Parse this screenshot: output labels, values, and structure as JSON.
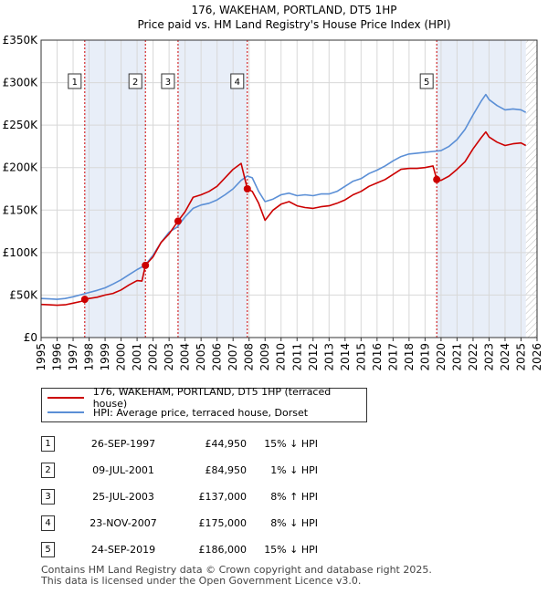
{
  "chart_data": {
    "type": "line",
    "title": "176, WAKEHAM, PORTLAND, DT5 1HP",
    "subtitle": "Price paid vs. HM Land Registry's House Price Index (HPI)",
    "xlim": [
      1995,
      2026
    ],
    "ylim": [
      0,
      350000
    ],
    "x_ticks": [
      "1995",
      "1996",
      "1997",
      "1998",
      "1999",
      "2000",
      "2001",
      "2002",
      "2003",
      "2004",
      "2005",
      "2006",
      "2007",
      "2008",
      "2009",
      "2010",
      "2011",
      "2012",
      "2013",
      "2014",
      "2015",
      "2016",
      "2017",
      "2018",
      "2019",
      "2020",
      "2021",
      "2022",
      "2023",
      "2024",
      "2025",
      "2026"
    ],
    "y_ticks": [
      {
        "value": 0,
        "label": "£0"
      },
      {
        "value": 50000,
        "label": "£50K"
      },
      {
        "value": 100000,
        "label": "£100K"
      },
      {
        "value": 150000,
        "label": "£150K"
      },
      {
        "value": 200000,
        "label": "£200K"
      },
      {
        "value": 250000,
        "label": "£250K"
      },
      {
        "value": 300000,
        "label": "£300K"
      },
      {
        "value": 350000,
        "label": "£350K"
      }
    ],
    "series": [
      {
        "name": "176, WAKEHAM, PORTLAND, DT5 1HP (terraced house)",
        "color": "#cc0000",
        "points": [
          [
            1995.0,
            39000
          ],
          [
            1995.5,
            38500
          ],
          [
            1996.0,
            38000
          ],
          [
            1996.5,
            38500
          ],
          [
            1997.0,
            40500
          ],
          [
            1997.5,
            42500
          ],
          [
            1997.73,
            44950
          ],
          [
            1998.0,
            46000
          ],
          [
            1998.5,
            47500
          ],
          [
            1999.0,
            50000
          ],
          [
            1999.5,
            52000
          ],
          [
            2000.0,
            56000
          ],
          [
            2000.5,
            62000
          ],
          [
            2001.0,
            67000
          ],
          [
            2001.3,
            66500
          ],
          [
            2001.52,
            84950
          ],
          [
            2002.0,
            95000
          ],
          [
            2002.5,
            112000
          ],
          [
            2003.0,
            122000
          ],
          [
            2003.56,
            137000
          ],
          [
            2004.0,
            148000
          ],
          [
            2004.5,
            165000
          ],
          [
            2005.0,
            168000
          ],
          [
            2005.5,
            172000
          ],
          [
            2006.0,
            178000
          ],
          [
            2006.5,
            188000
          ],
          [
            2007.0,
            198000
          ],
          [
            2007.5,
            205000
          ],
          [
            2007.89,
            175000
          ],
          [
            2008.2,
            172000
          ],
          [
            2008.6,
            158000
          ],
          [
            2009.0,
            138000
          ],
          [
            2009.5,
            150000
          ],
          [
            2010.0,
            157000
          ],
          [
            2010.5,
            160000
          ],
          [
            2011.0,
            155000
          ],
          [
            2011.5,
            153000
          ],
          [
            2012.0,
            152000
          ],
          [
            2012.5,
            154000
          ],
          [
            2013.0,
            155000
          ],
          [
            2013.5,
            158000
          ],
          [
            2014.0,
            162000
          ],
          [
            2014.5,
            168000
          ],
          [
            2015.0,
            172000
          ],
          [
            2015.5,
            178000
          ],
          [
            2016.0,
            182000
          ],
          [
            2016.5,
            186000
          ],
          [
            2017.0,
            192000
          ],
          [
            2017.5,
            198000
          ],
          [
            2018.0,
            199000
          ],
          [
            2018.5,
            199000
          ],
          [
            2019.0,
            200000
          ],
          [
            2019.5,
            202000
          ],
          [
            2019.73,
            186000
          ],
          [
            2020.0,
            185000
          ],
          [
            2020.5,
            190000
          ],
          [
            2021.0,
            198000
          ],
          [
            2021.5,
            207000
          ],
          [
            2022.0,
            222000
          ],
          [
            2022.5,
            235000
          ],
          [
            2022.8,
            242000
          ],
          [
            2023.0,
            236000
          ],
          [
            2023.5,
            230000
          ],
          [
            2024.0,
            226000
          ],
          [
            2024.5,
            228000
          ],
          [
            2025.0,
            229000
          ],
          [
            2025.3,
            226000
          ]
        ]
      },
      {
        "name": "HPI: Average price, terraced house, Dorset",
        "color": "#5b8fd6",
        "points": [
          [
            1995.0,
            46000
          ],
          [
            1995.5,
            45500
          ],
          [
            1996.0,
            45000
          ],
          [
            1996.5,
            46000
          ],
          [
            1997.0,
            48000
          ],
          [
            1997.5,
            50500
          ],
          [
            1998.0,
            53000
          ],
          [
            1998.5,
            55500
          ],
          [
            1999.0,
            58500
          ],
          [
            1999.5,
            63000
          ],
          [
            2000.0,
            68000
          ],
          [
            2000.5,
            74000
          ],
          [
            2001.0,
            80000
          ],
          [
            2001.5,
            85000
          ],
          [
            2002.0,
            97000
          ],
          [
            2002.5,
            112000
          ],
          [
            2003.0,
            124000
          ],
          [
            2003.5,
            130000
          ],
          [
            2004.0,
            142000
          ],
          [
            2004.5,
            152000
          ],
          [
            2005.0,
            156000
          ],
          [
            2005.5,
            158000
          ],
          [
            2006.0,
            162000
          ],
          [
            2006.5,
            168000
          ],
          [
            2007.0,
            175000
          ],
          [
            2007.5,
            185000
          ],
          [
            2007.89,
            190000
          ],
          [
            2008.2,
            188000
          ],
          [
            2008.6,
            172000
          ],
          [
            2009.0,
            160000
          ],
          [
            2009.5,
            163000
          ],
          [
            2010.0,
            168000
          ],
          [
            2010.5,
            170000
          ],
          [
            2011.0,
            167000
          ],
          [
            2011.5,
            168000
          ],
          [
            2012.0,
            167000
          ],
          [
            2012.5,
            169000
          ],
          [
            2013.0,
            169000
          ],
          [
            2013.5,
            172000
          ],
          [
            2014.0,
            178000
          ],
          [
            2014.5,
            184000
          ],
          [
            2015.0,
            187000
          ],
          [
            2015.5,
            193000
          ],
          [
            2016.0,
            197000
          ],
          [
            2016.5,
            202000
          ],
          [
            2017.0,
            208000
          ],
          [
            2017.5,
            213000
          ],
          [
            2018.0,
            216000
          ],
          [
            2018.5,
            217000
          ],
          [
            2019.0,
            218000
          ],
          [
            2019.5,
            219000
          ],
          [
            2020.0,
            220000
          ],
          [
            2020.5,
            225000
          ],
          [
            2021.0,
            233000
          ],
          [
            2021.5,
            245000
          ],
          [
            2022.0,
            262000
          ],
          [
            2022.5,
            278000
          ],
          [
            2022.8,
            286000
          ],
          [
            2023.0,
            280000
          ],
          [
            2023.5,
            273000
          ],
          [
            2024.0,
            268000
          ],
          [
            2024.5,
            269000
          ],
          [
            2025.0,
            268000
          ],
          [
            2025.3,
            265000
          ]
        ]
      }
    ],
    "sales": [
      {
        "label": "1",
        "year": 1997.73,
        "price": 44950
      },
      {
        "label": "2",
        "year": 2001.52,
        "price": 84950
      },
      {
        "label": "3",
        "year": 2003.56,
        "price": 137000
      },
      {
        "label": "4",
        "year": 2007.89,
        "price": 175000
      },
      {
        "label": "5",
        "year": 2019.73,
        "price": 186000
      }
    ],
    "shaded_ranges": [
      [
        1997.73,
        2001.52
      ],
      [
        2003.56,
        2007.89
      ],
      [
        2019.73,
        2025.3
      ]
    ],
    "hatched_from": 2025.3
  },
  "legend": {
    "property_label": "176, WAKEHAM, PORTLAND, DT5 1HP (terraced house)",
    "hpi_label": "HPI: Average price, terraced house, Dorset",
    "property_color": "#cc0000",
    "hpi_color": "#5b8fd6"
  },
  "table": [
    {
      "num": "1",
      "date": "26-SEP-1997",
      "price": "£44,950",
      "pct": "15% ↓ HPI"
    },
    {
      "num": "2",
      "date": "09-JUL-2001",
      "price": "£84,950",
      "pct": "1% ↓ HPI"
    },
    {
      "num": "3",
      "date": "25-JUL-2003",
      "price": "£137,000",
      "pct": "8% ↑ HPI"
    },
    {
      "num": "4",
      "date": "23-NOV-2007",
      "price": "£175,000",
      "pct": "8% ↓ HPI"
    },
    {
      "num": "5",
      "date": "24-SEP-2019",
      "price": "£186,000",
      "pct": "15% ↓ HPI"
    }
  ],
  "footer": {
    "line1": "Contains HM Land Registry data © Crown copyright and database right 2025.",
    "line2": "This data is licensed under the Open Government Licence v3.0."
  }
}
